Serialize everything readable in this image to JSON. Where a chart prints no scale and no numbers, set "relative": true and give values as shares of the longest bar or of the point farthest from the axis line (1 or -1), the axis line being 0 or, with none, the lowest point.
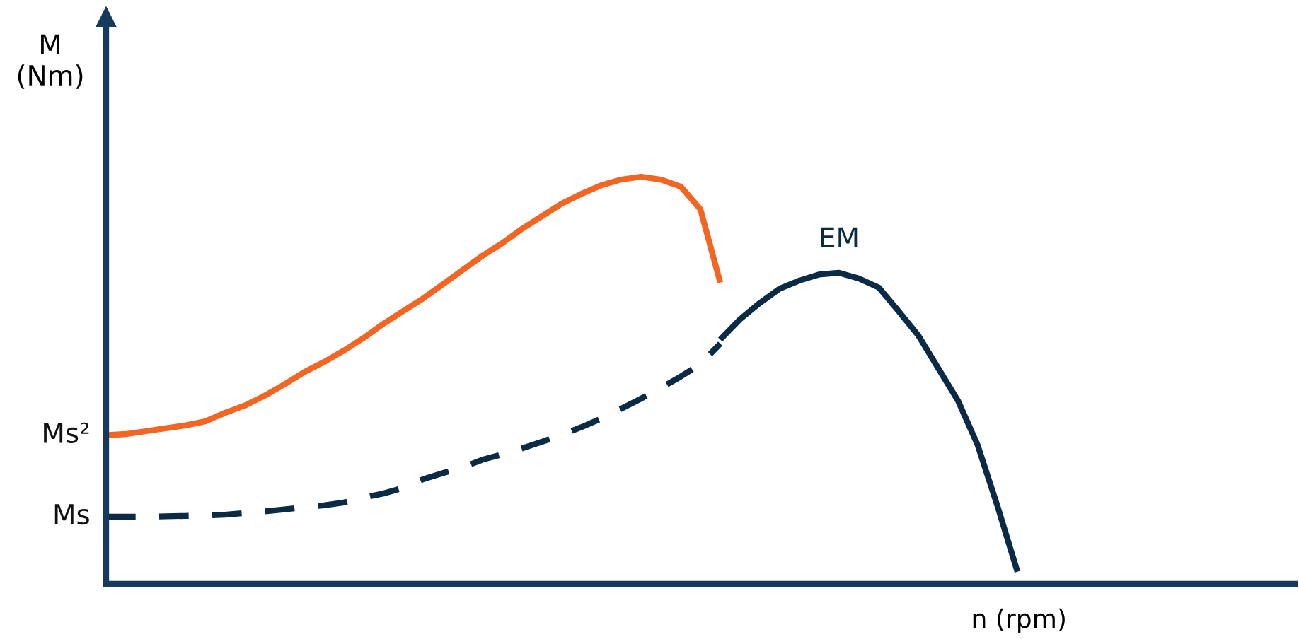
{
  "chart_data": {
    "type": "line",
    "relative": true,
    "ylabel": "M\n(Nm)",
    "xlabel": "n (rpm)",
    "categories": [
      null,
      null,
      null,
      null,
      null,
      null,
      null,
      null,
      null,
      null,
      null,
      null,
      null,
      null,
      null,
      null,
      null,
      null,
      null,
      null,
      null,
      null,
      null,
      null,
      null,
      null,
      null,
      null,
      null,
      null,
      null,
      null,
      null,
      null,
      null,
      null,
      null,
      null,
      null,
      null,
      null,
      null,
      null,
      null,
      null,
      null,
      null,
      null,
      null,
      null,
      null,
      null,
      null,
      null,
      null,
      null,
      null,
      null,
      null,
      null,
      null
    ],
    "annotations": [
      "Ms²",
      "Ms"
    ],
    "legend": false,
    "marker": "none",
    "series": [
      {
        "color": "#f26522",
        "line_style": "solid",
        "values": [
          0.365,
          0.368,
          0.375,
          0.382,
          0.389,
          0.399,
          0.42,
          0.438,
          0.462,
          0.49,
          0.52,
          0.545,
          0.573,
          0.604,
          0.639,
          0.67,
          0.701,
          0.736,
          0.771,
          0.806,
          0.837,
          0.872,
          0.903,
          0.934,
          0.958,
          0.979,
          0.993,
          1.0,
          0.993,
          0.976,
          0.92,
          0.74,
          null,
          null,
          null,
          null,
          null,
          null,
          null,
          null,
          null,
          null,
          null,
          null,
          null,
          null,
          null,
          null,
          null,
          null,
          null,
          null,
          null,
          null,
          null,
          null,
          null,
          null,
          null,
          null,
          null
        ]
      },
      {
        "color": "#0b2a45",
        "line_style": "dashed",
        "values": [
          0.165,
          0.165,
          0.165,
          0.166,
          0.167,
          0.168,
          0.17,
          0.174,
          0.178,
          0.183,
          0.188,
          0.193,
          0.2,
          0.212,
          0.222,
          0.236,
          0.257,
          0.272,
          0.286,
          0.305,
          0.318,
          0.333,
          0.349,
          0.366,
          0.385,
          0.406,
          0.43,
          0.455,
          0.481,
          0.509,
          0.54,
          0.59,
          null,
          null,
          null,
          null,
          null,
          null,
          null,
          null,
          null,
          null,
          null,
          null,
          null,
          null,
          null,
          null,
          null,
          null,
          null,
          null,
          null,
          null,
          null,
          null,
          null,
          null,
          null,
          null,
          null
        ]
      },
      {
        "name": "EM",
        "color": "#0b2a45",
        "line_style": "solid",
        "values": [
          null,
          null,
          null,
          null,
          null,
          null,
          null,
          null,
          null,
          null,
          null,
          null,
          null,
          null,
          null,
          null,
          null,
          null,
          null,
          null,
          null,
          null,
          null,
          null,
          null,
          null,
          null,
          null,
          null,
          null,
          null,
          0.6,
          0.65,
          0.69,
          0.725,
          0.745,
          0.76,
          0.764,
          0.75,
          0.728,
          0.67,
          0.61,
          0.53,
          0.45,
          0.34,
          0.19,
          0.03,
          null,
          null,
          null,
          null,
          null,
          null,
          null,
          null,
          null,
          null,
          null,
          null,
          null,
          null
        ]
      }
    ]
  }
}
